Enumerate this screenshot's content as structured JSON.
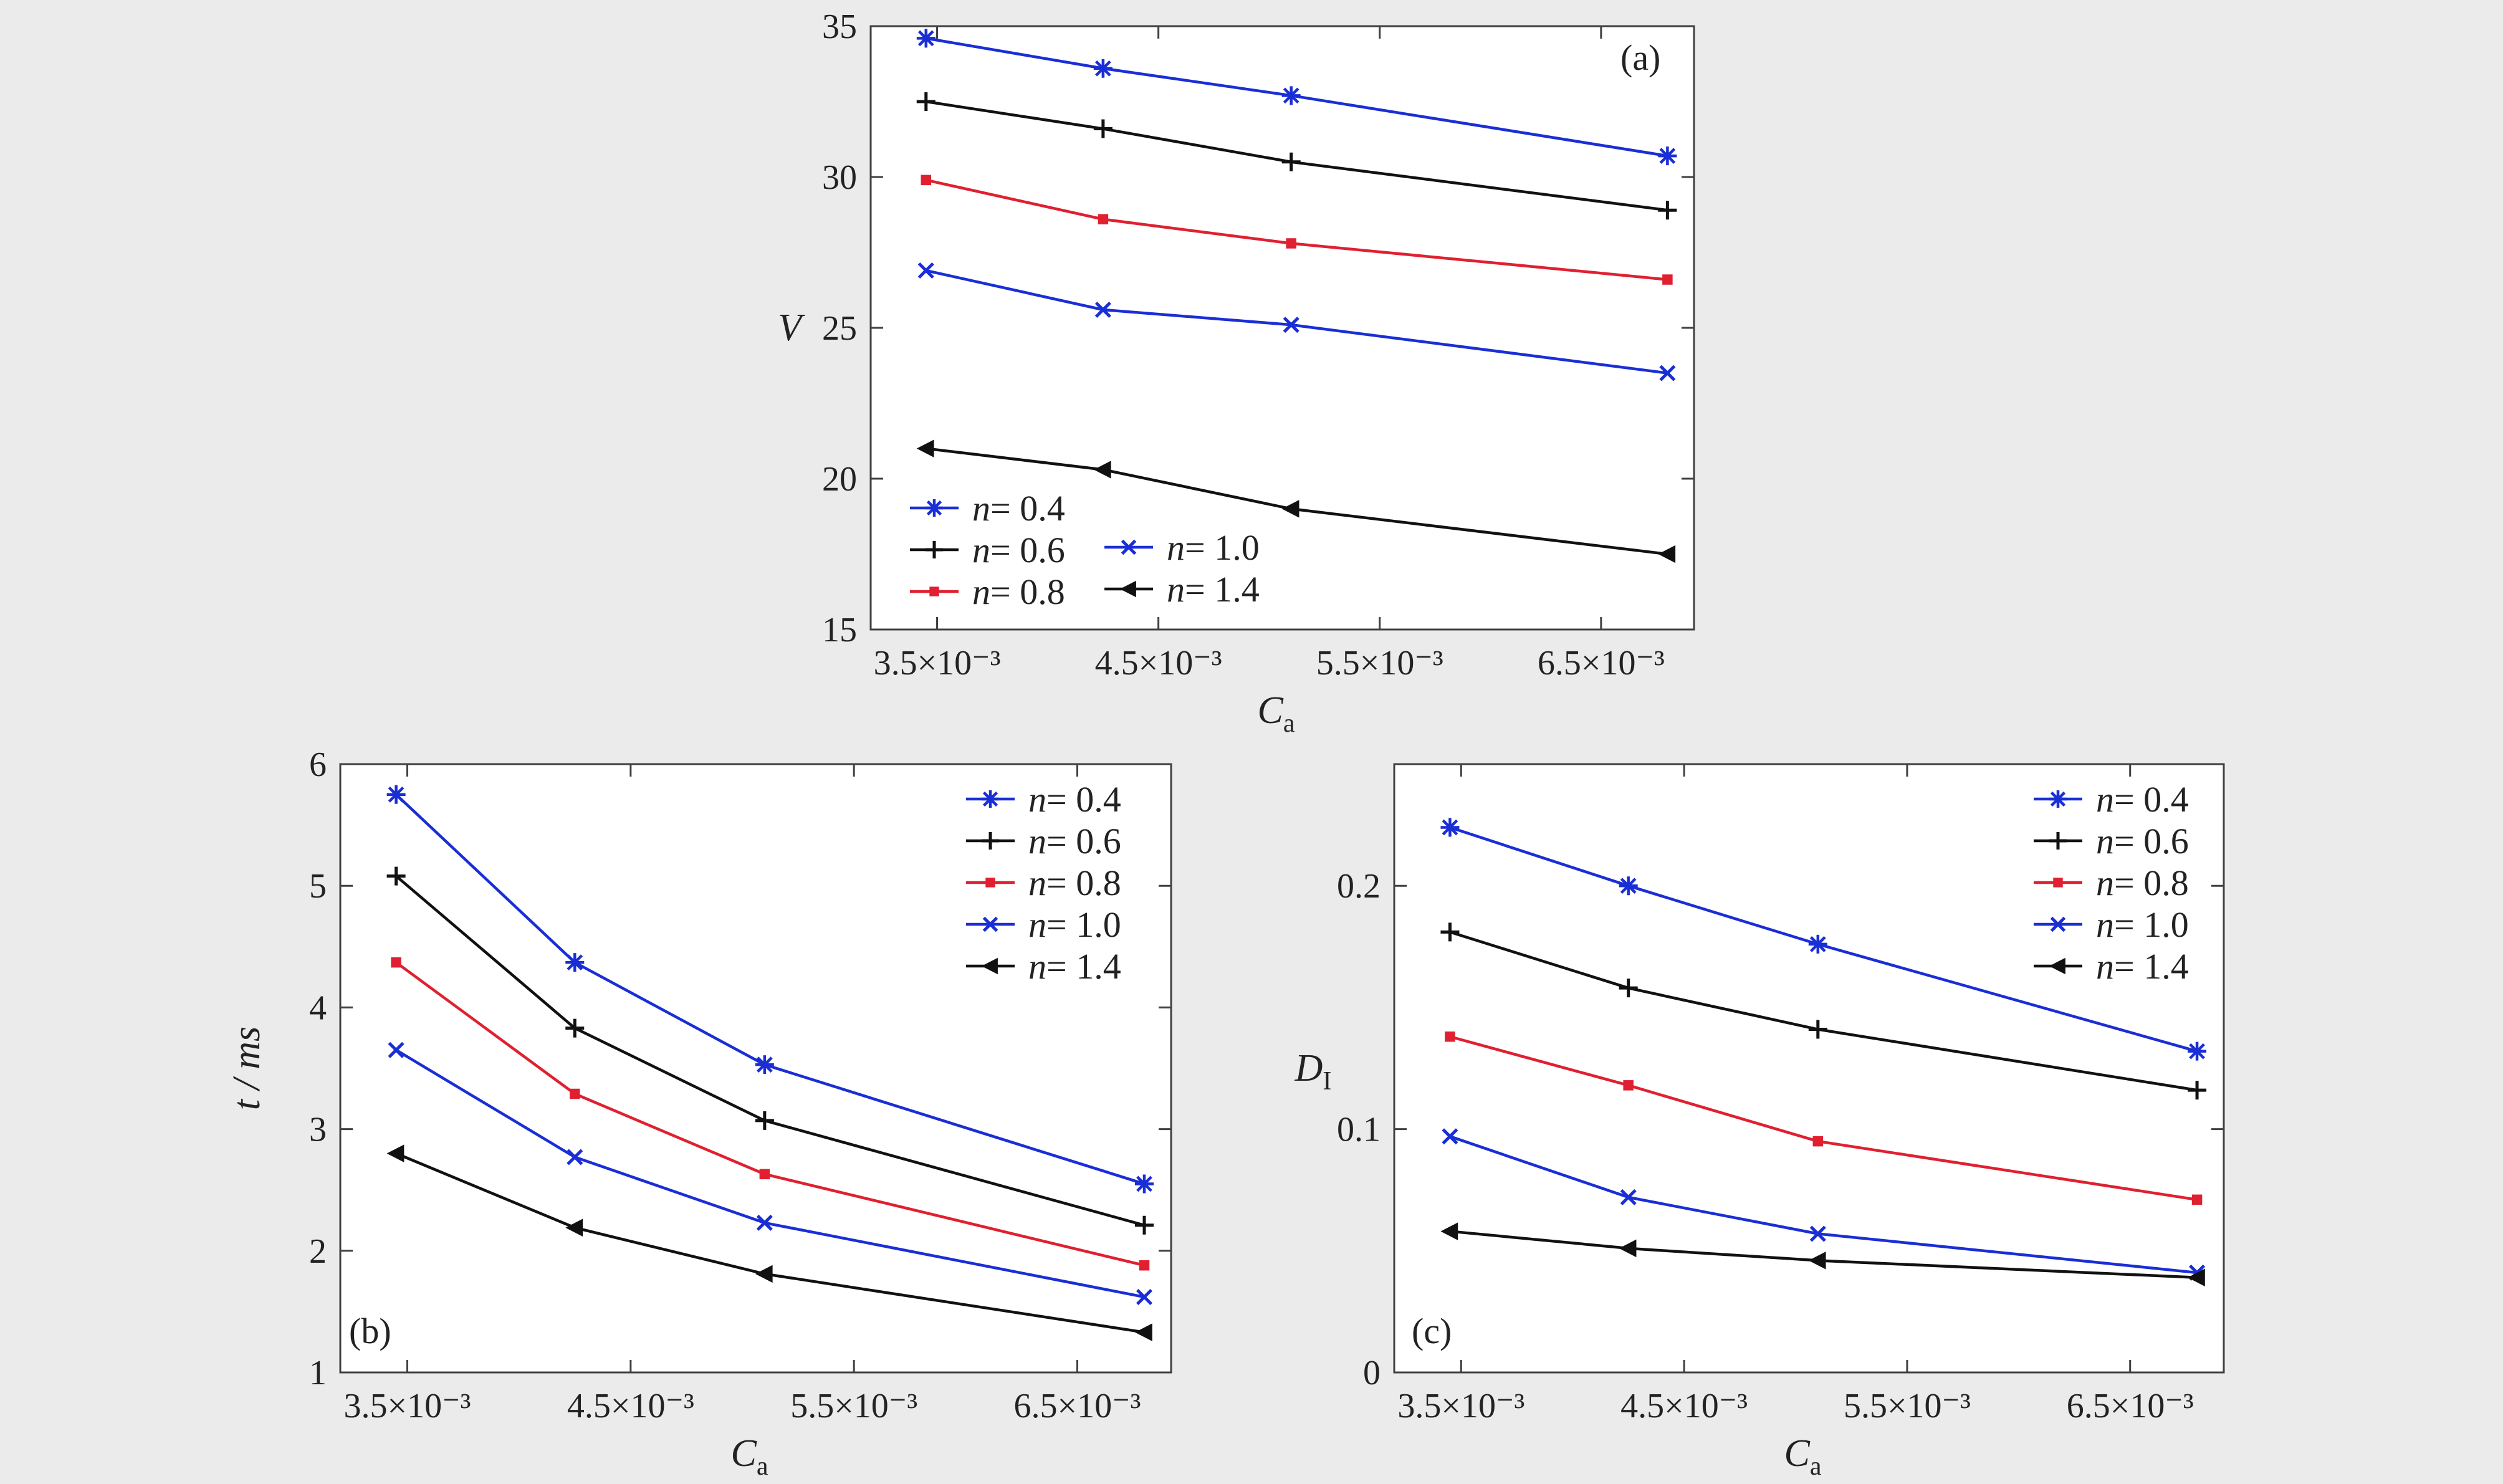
{
  "chart_data": [
    {
      "id": "a",
      "type": "line",
      "panel_label": "(a)",
      "x": [
        0.00345,
        0.00425,
        0.0051,
        0.0068
      ],
      "xticks": [
        "3.5×10⁻³",
        "4.5×10⁻³",
        "5.5×10⁻³",
        "6.5×10⁻³"
      ],
      "xtick_values": [
        0.0035,
        0.0045,
        0.0055,
        0.0065
      ],
      "xlim": [
        0.0032,
        0.00692
      ],
      "xlabel": "C",
      "xlabel_sub": "a",
      "ylabel": "V",
      "ylabel_sub": "",
      "ylim": [
        15,
        35
      ],
      "yticks": [
        15,
        20,
        25,
        30,
        35
      ],
      "ytick_labels": [
        "15",
        "20",
        "25",
        "30",
        "35"
      ],
      "series": [
        {
          "name": "n = 0.4",
          "n": "0.4",
          "values": [
            34.6,
            33.6,
            32.7,
            30.7
          ],
          "color": "#1a2ed6",
          "marker": "asterisk"
        },
        {
          "name": "n = 0.6",
          "n": "0.6",
          "values": [
            32.5,
            31.6,
            30.5,
            28.9
          ],
          "color": "#111111",
          "marker": "plus"
        },
        {
          "name": "n = 0.8",
          "n": "0.8",
          "values": [
            29.9,
            28.6,
            27.8,
            26.6
          ],
          "color": "#e02030",
          "marker": "square"
        },
        {
          "name": "n = 1.0",
          "n": "1.0",
          "values": [
            26.9,
            25.6,
            25.1,
            23.5
          ],
          "color": "#1a2ed6",
          "marker": "x"
        },
        {
          "name": "n = 1.4",
          "n": "1.4",
          "values": [
            21.0,
            20.3,
            19.0,
            17.5
          ],
          "color": "#111111",
          "marker": "triangle-left"
        }
      ],
      "legend_placement": "bottom-left"
    },
    {
      "id": "b",
      "type": "line",
      "panel_label": "(b)",
      "x": [
        0.00345,
        0.00425,
        0.0051,
        0.0068
      ],
      "xticks": [
        "3.5×10⁻³",
        "4.5×10⁻³",
        "5.5×10⁻³",
        "6.5×10⁻³"
      ],
      "xtick_values": [
        0.0035,
        0.0045,
        0.0055,
        0.0065
      ],
      "xlim": [
        0.0032,
        0.00692
      ],
      "xlabel": "C",
      "xlabel_sub": "a",
      "ylabel": "t / ms",
      "ylabel_sub": "",
      "ylim": [
        1,
        6
      ],
      "yticks": [
        1,
        2,
        3,
        4,
        5,
        6
      ],
      "ytick_labels": [
        "1",
        "2",
        "3",
        "4",
        "5",
        "6"
      ],
      "series": [
        {
          "name": "n = 0.4",
          "n": "0.4",
          "values": [
            5.75,
            4.37,
            3.53,
            2.55
          ],
          "color": "#1a2ed6",
          "marker": "asterisk"
        },
        {
          "name": "n = 0.6",
          "n": "0.6",
          "values": [
            5.08,
            3.83,
            3.07,
            2.21
          ],
          "color": "#111111",
          "marker": "plus"
        },
        {
          "name": "n = 0.8",
          "n": "0.8",
          "values": [
            4.37,
            3.29,
            2.63,
            1.88
          ],
          "color": "#e02030",
          "marker": "square"
        },
        {
          "name": "n = 1.0",
          "n": "1.0",
          "values": [
            3.65,
            2.77,
            2.23,
            1.62
          ],
          "color": "#1a2ed6",
          "marker": "x"
        },
        {
          "name": "n = 1.4",
          "n": "1.4",
          "values": [
            2.8,
            2.19,
            1.81,
            1.33
          ],
          "color": "#111111",
          "marker": "triangle-left"
        }
      ],
      "legend_placement": "top-right"
    },
    {
      "id": "c",
      "type": "line",
      "panel_label": "(c)",
      "x": [
        0.00345,
        0.00425,
        0.0051,
        0.0068
      ],
      "xticks": [
        "3.5×10⁻³",
        "4.5×10⁻³",
        "5.5×10⁻³",
        "6.5×10⁻³"
      ],
      "xtick_values": [
        0.0035,
        0.0045,
        0.0055,
        0.0065
      ],
      "xlim": [
        0.0032,
        0.00692
      ],
      "xlabel": "C",
      "xlabel_sub": "a",
      "ylabel": "D",
      "ylabel_sub": "I",
      "ylim": [
        0,
        0.25
      ],
      "yticks": [
        0,
        0.1,
        0.2
      ],
      "ytick_labels": [
        "0",
        "0.1",
        "0.2"
      ],
      "series": [
        {
          "name": "n = 0.4",
          "n": "0.4",
          "values": [
            0.224,
            0.2,
            0.176,
            0.132
          ],
          "color": "#1a2ed6",
          "marker": "asterisk"
        },
        {
          "name": "n = 0.6",
          "n": "0.6",
          "values": [
            0.181,
            0.158,
            0.141,
            0.116
          ],
          "color": "#111111",
          "marker": "plus"
        },
        {
          "name": "n = 0.8",
          "n": "0.8",
          "values": [
            0.138,
            0.118,
            0.095,
            0.071
          ],
          "color": "#e02030",
          "marker": "square"
        },
        {
          "name": "n = 1.0",
          "n": "1.0",
          "values": [
            0.097,
            0.072,
            0.057,
            0.041
          ],
          "color": "#1a2ed6",
          "marker": "x"
        },
        {
          "name": "n = 1.4",
          "n": "1.4",
          "values": [
            0.058,
            0.051,
            0.046,
            0.039
          ],
          "color": "#111111",
          "marker": "triangle-left"
        }
      ],
      "legend_placement": "top-right"
    }
  ]
}
